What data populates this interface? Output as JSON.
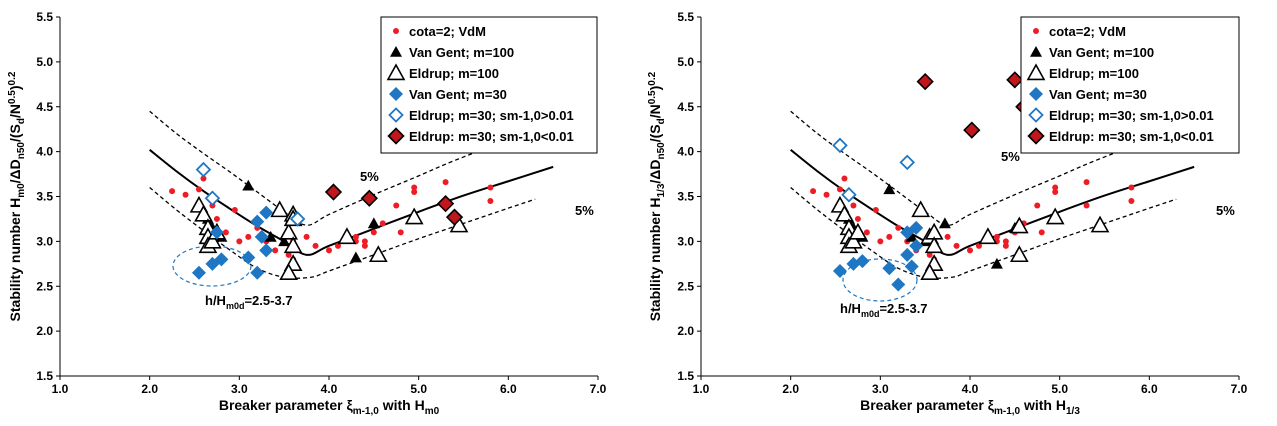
{
  "colors": {
    "red": "#ee1c25",
    "blue": "#1f77c4",
    "black": "#000000",
    "darkred": "#c0161c"
  },
  "legend_labels": [
    "cota=2; VdM",
    "Van Gent; m=100",
    "Eldrup; m=100",
    "Van Gent; m=30",
    "Eldrup; m=30; sm-1,0>0.01",
    "Eldrup: m=30; sm-1,0<0.01"
  ],
  "chart_data": [
    {
      "type": "scatter",
      "ylabel": {
        "pre": "Stability number H",
        "sub1": "m0",
        "mid": "/ΔD",
        "sub2": "n50",
        "post": "/(S",
        "sub3": "d",
        "post2": "/N",
        "sup1": "0.5",
        "post3": ")",
        "sup2": "0.2"
      },
      "xlabel": {
        "pre": "Breaker parameter ξ",
        "sub1": "m-1,0",
        "mid": " with H",
        "sub2": "m0"
      },
      "xlim": [
        1.0,
        7.0
      ],
      "ylim": [
        1.5,
        5.5
      ],
      "xticks": [
        "1.0",
        "2.0",
        "3.0",
        "4.0",
        "5.0",
        "6.0",
        "7.0"
      ],
      "yticks": [
        "1.5",
        "2.0",
        "2.5",
        "3.0",
        "3.5",
        "4.0",
        "4.5",
        "5.0",
        "5.5"
      ],
      "grid": false,
      "legend_position": "top-right",
      "annotation": {
        "pre": "h/H",
        "sub": "m0d",
        "post": "=2.5-3.7"
      },
      "pct_upper": "5%",
      "pct_lower": "5%",
      "series": [
        {
          "name": "cota=2; VdM",
          "marker": "dot",
          "color": "#ee1c25",
          "points": [
            [
              2.25,
              3.56
            ],
            [
              2.4,
              3.52
            ],
            [
              2.55,
              3.58
            ],
            [
              2.6,
              3.7
            ],
            [
              2.7,
              3.4
            ],
            [
              2.75,
              3.25
            ],
            [
              2.85,
              3.1
            ],
            [
              2.95,
              3.35
            ],
            [
              3.0,
              3.0
            ],
            [
              3.1,
              3.05
            ],
            [
              3.2,
              3.15
            ],
            [
              3.3,
              3.0
            ],
            [
              3.4,
              2.9
            ],
            [
              3.55,
              2.85
            ],
            [
              3.6,
              3.0
            ],
            [
              3.75,
              3.05
            ],
            [
              3.85,
              2.95
            ],
            [
              4.0,
              2.9
            ],
            [
              4.1,
              2.95
            ],
            [
              4.2,
              3.05
            ],
            [
              4.3,
              3.0
            ],
            [
              4.4,
              2.95
            ],
            [
              4.5,
              3.1
            ],
            [
              4.6,
              3.2
            ],
            [
              4.75,
              3.4
            ],
            [
              4.8,
              3.1
            ],
            [
              4.95,
              3.55
            ],
            [
              4.95,
              3.6
            ],
            [
              5.3,
              4.02
            ],
            [
              5.3,
              3.66
            ],
            [
              5.3,
              3.4
            ],
            [
              5.8,
              3.45
            ],
            [
              5.8,
              3.6
            ],
            [
              3.6,
              2.8
            ],
            [
              4.3,
              3.05
            ],
            [
              4.4,
              3.0
            ]
          ]
        },
        {
          "name": "Van Gent; m=100",
          "marker": "tri",
          "color": "#000000",
          "points": [
            [
              2.65,
              3.25
            ],
            [
              2.7,
              3.15
            ],
            [
              2.75,
              3.1
            ],
            [
              2.8,
              3.05
            ],
            [
              3.1,
              3.62
            ],
            [
              3.5,
              3.0
            ],
            [
              4.3,
              2.82
            ],
            [
              4.5,
              3.2
            ],
            [
              3.35,
              3.05
            ]
          ]
        },
        {
          "name": "Eldrup; m=100",
          "marker": "tri-open",
          "color": "#000000",
          "points": [
            [
              2.55,
              3.4
            ],
            [
              2.6,
              3.3
            ],
            [
              2.65,
              3.15
            ],
            [
              2.65,
              3.05
            ],
            [
              2.65,
              2.95
            ],
            [
              2.7,
              3.0
            ],
            [
              2.75,
              3.1
            ],
            [
              3.45,
              3.35
            ],
            [
              3.55,
              3.1
            ],
            [
              3.6,
              3.3
            ],
            [
              3.6,
              3.25
            ],
            [
              3.6,
              2.95
            ],
            [
              3.6,
              2.75
            ],
            [
              3.55,
              2.65
            ],
            [
              4.2,
              3.05
            ],
            [
              4.55,
              2.85
            ],
            [
              4.95,
              3.27
            ],
            [
              5.45,
              3.18
            ]
          ]
        },
        {
          "name": "Van Gent; m=30",
          "marker": "dia",
          "color": "#1f77c4",
          "points": [
            [
              2.55,
              2.65
            ],
            [
              2.7,
              2.75
            ],
            [
              2.8,
              2.8
            ],
            [
              3.1,
              2.82
            ],
            [
              3.2,
              3.22
            ],
            [
              3.25,
              3.05
            ],
            [
              3.3,
              3.32
            ],
            [
              3.3,
              2.9
            ],
            [
              3.2,
              2.65
            ],
            [
              2.75,
              3.1
            ]
          ]
        },
        {
          "name": "Eldrup; m=30; sm-1,0>0.01",
          "marker": "dia-open",
          "color": "#1f77c4",
          "points": [
            [
              2.6,
              3.8
            ],
            [
              2.7,
              3.48
            ],
            [
              3.65,
              3.25
            ]
          ]
        },
        {
          "name": "Eldrup: m=30; sm-1,0<0.01",
          "marker": "dia-red",
          "color": "#c0161c",
          "points": [
            [
              4.05,
              3.55
            ],
            [
              4.45,
              3.48
            ],
            [
              5.3,
              3.42
            ],
            [
              5.4,
              3.27
            ]
          ]
        }
      ],
      "curves": {
        "mean": [
          [
            2.0,
            4.02
          ],
          [
            2.3,
            3.78
          ],
          [
            2.6,
            3.56
          ],
          [
            2.9,
            3.36
          ],
          [
            3.2,
            3.17
          ],
          [
            3.5,
            3.0
          ],
          [
            3.75,
            2.85
          ],
          [
            4.0,
            2.95
          ],
          [
            4.5,
            3.14
          ],
          [
            5.0,
            3.33
          ],
          [
            5.5,
            3.51
          ],
          [
            6.0,
            3.67
          ],
          [
            6.5,
            3.83
          ]
        ],
        "upper": [
          [
            2.0,
            4.45
          ],
          [
            2.3,
            4.2
          ],
          [
            2.6,
            3.98
          ],
          [
            2.9,
            3.77
          ],
          [
            3.2,
            3.55
          ],
          [
            3.5,
            3.33
          ],
          [
            3.75,
            3.18
          ],
          [
            4.0,
            3.3
          ],
          [
            4.5,
            3.52
          ],
          [
            5.0,
            3.73
          ],
          [
            5.3,
            3.86
          ],
          [
            5.6,
            3.98
          ]
        ],
        "lower": [
          [
            2.0,
            3.6
          ],
          [
            2.3,
            3.35
          ],
          [
            2.6,
            3.12
          ],
          [
            2.9,
            2.9
          ],
          [
            3.2,
            2.7
          ],
          [
            3.5,
            2.6
          ],
          [
            3.8,
            2.6
          ],
          [
            4.0,
            2.67
          ],
          [
            4.5,
            2.85
          ],
          [
            5.0,
            3.03
          ],
          [
            5.5,
            3.2
          ],
          [
            6.0,
            3.37
          ],
          [
            6.3,
            3.47
          ]
        ]
      }
    },
    {
      "type": "scatter",
      "ylabel": {
        "pre": "Stability number H",
        "sub1": "1/3",
        "mid": "/ΔD",
        "sub2": "n50",
        "post": "/(S",
        "sub3": "d",
        "post2": "/N",
        "sup1": "0.5",
        "post3": ")",
        "sup2": "0.2"
      },
      "xlabel": {
        "pre": "Breaker parameter ξ",
        "sub1": "m-1,0",
        "mid": " with H",
        "sub2": "1/3"
      },
      "xlim": [
        1.0,
        7.0
      ],
      "ylim": [
        1.5,
        5.5
      ],
      "xticks": [
        "1.0",
        "2.0",
        "3.0",
        "4.0",
        "5.0",
        "6.0",
        "7.0"
      ],
      "yticks": [
        "1.5",
        "2.0",
        "2.5",
        "3.0",
        "3.5",
        "4.0",
        "4.5",
        "5.0",
        "5.5"
      ],
      "grid": false,
      "legend_position": "top-right",
      "annotation": {
        "pre": "h/H",
        "sub": "m0d",
        "post": "=2.5-3.7"
      },
      "pct_upper": "5%",
      "pct_lower": "5%",
      "series": [
        {
          "name": "cota=2; VdM",
          "marker": "dot",
          "color": "#ee1c25",
          "points": [
            [
              2.25,
              3.56
            ],
            [
              2.4,
              3.52
            ],
            [
              2.55,
              3.58
            ],
            [
              2.6,
              3.7
            ],
            [
              2.7,
              3.4
            ],
            [
              2.75,
              3.25
            ],
            [
              2.85,
              3.1
            ],
            [
              2.95,
              3.35
            ],
            [
              3.0,
              3.0
            ],
            [
              3.1,
              3.05
            ],
            [
              3.2,
              3.15
            ],
            [
              3.3,
              3.0
            ],
            [
              3.4,
              2.9
            ],
            [
              3.55,
              2.85
            ],
            [
              3.6,
              3.0
            ],
            [
              3.75,
              3.05
            ],
            [
              3.85,
              2.95
            ],
            [
              4.0,
              2.9
            ],
            [
              4.1,
              2.95
            ],
            [
              4.2,
              3.05
            ],
            [
              4.3,
              3.0
            ],
            [
              4.4,
              2.95
            ],
            [
              4.5,
              3.1
            ],
            [
              4.6,
              3.2
            ],
            [
              4.75,
              3.4
            ],
            [
              4.8,
              3.1
            ],
            [
              4.95,
              3.55
            ],
            [
              4.95,
              3.6
            ],
            [
              5.3,
              4.02
            ],
            [
              5.3,
              3.66
            ],
            [
              5.3,
              3.4
            ],
            [
              5.8,
              3.45
            ],
            [
              5.8,
              3.6
            ],
            [
              3.6,
              2.8
            ],
            [
              4.3,
              3.05
            ],
            [
              4.4,
              3.0
            ]
          ]
        },
        {
          "name": "Van Gent; m=100",
          "marker": "tri",
          "color": "#000000",
          "points": [
            [
              2.65,
              3.25
            ],
            [
              2.7,
              3.15
            ],
            [
              2.75,
              3.1
            ],
            [
              2.8,
              3.05
            ],
            [
              3.1,
              3.58
            ],
            [
              3.5,
              3.0
            ],
            [
              4.3,
              2.75
            ],
            [
              4.5,
              3.15
            ],
            [
              3.72,
              3.2
            ],
            [
              3.35,
              3.05
            ]
          ]
        },
        {
          "name": "Eldrup; m=100",
          "marker": "tri-open",
          "color": "#000000",
          "points": [
            [
              2.55,
              3.4
            ],
            [
              2.6,
              3.3
            ],
            [
              2.65,
              3.15
            ],
            [
              2.65,
              3.05
            ],
            [
              2.65,
              2.95
            ],
            [
              2.7,
              3.0
            ],
            [
              2.75,
              3.1
            ],
            [
              3.45,
              3.35
            ],
            [
              3.55,
              3.05
            ],
            [
              3.6,
              3.1
            ],
            [
              3.6,
              2.95
            ],
            [
              3.6,
              2.75
            ],
            [
              3.55,
              2.65
            ],
            [
              4.2,
              3.05
            ],
            [
              4.55,
              2.85
            ],
            [
              4.55,
              3.17
            ],
            [
              4.95,
              3.27
            ],
            [
              5.45,
              3.18
            ]
          ]
        },
        {
          "name": "Van Gent; m=30",
          "marker": "dia",
          "color": "#1f77c4",
          "points": [
            [
              2.55,
              2.67
            ],
            [
              2.7,
              2.75
            ],
            [
              2.8,
              2.78
            ],
            [
              3.1,
              2.7
            ],
            [
              3.2,
              2.52
            ],
            [
              3.3,
              2.85
            ],
            [
              3.35,
              2.72
            ],
            [
              3.3,
              3.1
            ],
            [
              3.4,
              3.15
            ],
            [
              3.4,
              2.95
            ]
          ]
        },
        {
          "name": "Eldrup; m=30; sm-1,0>0.01",
          "marker": "dia-open",
          "color": "#1f77c4",
          "points": [
            [
              2.55,
              4.07
            ],
            [
              2.65,
              3.52
            ],
            [
              3.3,
              3.88
            ]
          ]
        },
        {
          "name": "Eldrup: m=30; sm-1,0<0.01",
          "marker": "dia-red",
          "color": "#c0161c",
          "points": [
            [
              3.5,
              4.78
            ],
            [
              4.5,
              4.8
            ],
            [
              4.6,
              4.5
            ],
            [
              4.02,
              4.24
            ]
          ]
        }
      ],
      "curves": {
        "mean": [
          [
            2.0,
            4.02
          ],
          [
            2.3,
            3.78
          ],
          [
            2.6,
            3.56
          ],
          [
            2.9,
            3.36
          ],
          [
            3.2,
            3.17
          ],
          [
            3.5,
            3.0
          ],
          [
            3.75,
            2.85
          ],
          [
            4.0,
            2.95
          ],
          [
            4.5,
            3.14
          ],
          [
            5.0,
            3.33
          ],
          [
            5.5,
            3.51
          ],
          [
            6.0,
            3.67
          ],
          [
            6.5,
            3.83
          ]
        ],
        "upper": [
          [
            2.0,
            4.45
          ],
          [
            2.3,
            4.2
          ],
          [
            2.6,
            3.98
          ],
          [
            2.9,
            3.77
          ],
          [
            3.2,
            3.55
          ],
          [
            3.5,
            3.33
          ],
          [
            3.75,
            3.18
          ],
          [
            4.0,
            3.3
          ],
          [
            4.5,
            3.52
          ],
          [
            5.0,
            3.73
          ],
          [
            5.3,
            3.86
          ],
          [
            5.6,
            3.98
          ]
        ],
        "lower": [
          [
            2.0,
            3.6
          ],
          [
            2.3,
            3.35
          ],
          [
            2.6,
            3.12
          ],
          [
            2.9,
            2.9
          ],
          [
            3.2,
            2.7
          ],
          [
            3.5,
            2.6
          ],
          [
            3.8,
            2.6
          ],
          [
            4.0,
            2.67
          ],
          [
            4.5,
            2.85
          ],
          [
            5.0,
            3.03
          ],
          [
            5.5,
            3.2
          ],
          [
            6.0,
            3.37
          ],
          [
            6.3,
            3.47
          ]
        ]
      }
    }
  ]
}
